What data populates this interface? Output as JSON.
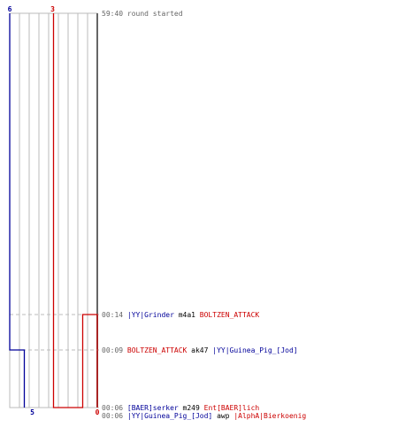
{
  "colors": {
    "blue": "#000099",
    "red": "#cc0000",
    "grid": "#bbbbbb",
    "dashed": "#bbbbbb",
    "time": "#666666",
    "text": "#000000"
  },
  "chart_data": {
    "type": "line",
    "axis": {
      "time_min": 59.667,
      "time_max": 0,
      "time_unit": "minutes_remaining"
    },
    "count_min": 0,
    "count_max": 6,
    "labels": {
      "blue_top": "6",
      "red_top": "3",
      "blue_bottom": "5",
      "red_bottom": "0"
    },
    "series": [
      {
        "name": "blue",
        "points": [
          [
            59.667,
            6
          ],
          [
            0.15,
            6
          ],
          [
            0.15,
            5
          ],
          [
            0,
            5
          ]
        ]
      },
      {
        "name": "red",
        "points": [
          [
            59.667,
            3
          ],
          [
            0.1,
            3
          ],
          [
            0.1,
            1
          ],
          [
            0.233,
            1
          ],
          [
            0.233,
            0
          ],
          [
            0,
            0
          ]
        ]
      }
    ]
  },
  "events": [
    {
      "time": "59:40",
      "plain": "round started",
      "minutes": 59.667
    },
    {
      "time": "00:06",
      "killer": "[BAER]serker",
      "killer_team": "blue",
      "weapon": "m249",
      "victim": "Ent[BAER]lich",
      "victim_team": "red",
      "minutes": 0.1
    },
    {
      "time": "00:06",
      "killer": "|YY|Guinea_Pig_[Jod]",
      "killer_team": "blue",
      "weapon": "awp",
      "victim": "|AlphA|Bierkoenig",
      "victim_team": "red",
      "minutes": 0.1
    },
    {
      "time": "00:09",
      "killer": "BOLTZEN_ATTACK",
      "killer_team": "red",
      "weapon": "ak47",
      "victim": "|YY|Guinea_Pig_[Jod]",
      "victim_team": "blue",
      "minutes": 0.15
    },
    {
      "time": "00:14",
      "killer": "|YY|Grinder",
      "killer_team": "blue",
      "weapon": "m4a1",
      "victim": "BOLTZEN_ATTACK",
      "victim_team": "red",
      "minutes": 0.233
    }
  ]
}
